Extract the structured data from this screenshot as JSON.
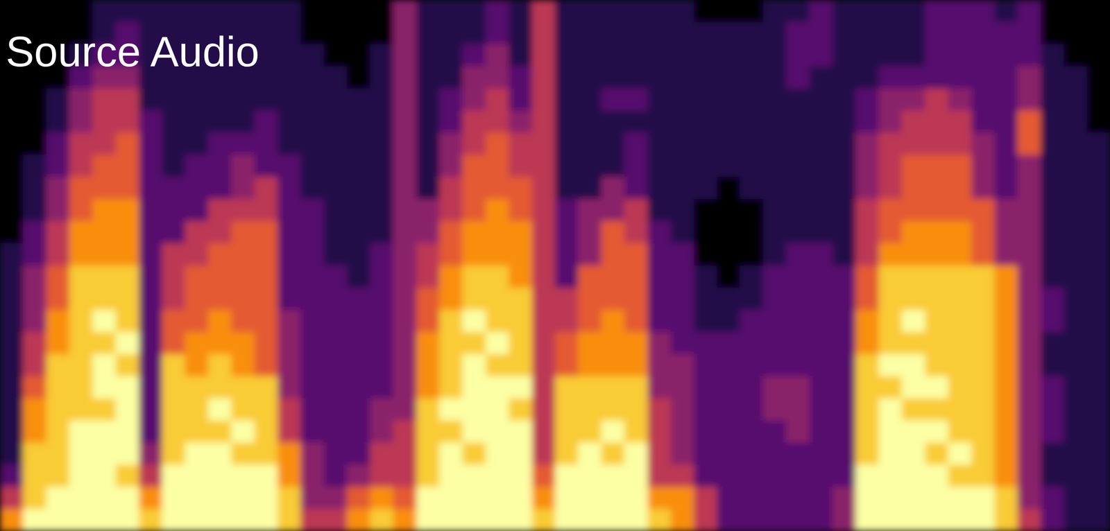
{
  "chart_data": {
    "type": "heatmap",
    "title": "Source Audio",
    "tick_labels": false,
    "cells": [
      [
        1,
        1,
        1,
        1,
        1,
        1,
        1,
        1,
        1,
        1,
        1,
        2,
        2,
        2,
        2,
        2,
        2,
        2,
        2,
        2,
        2,
        3,
        5,
        7
      ],
      [
        1,
        1,
        1,
        1,
        1,
        1,
        1,
        2,
        2,
        2,
        3,
        3,
        4,
        4,
        4,
        5,
        5,
        6,
        7,
        7,
        8,
        8,
        8,
        9
      ],
      [
        1,
        1,
        1,
        1,
        2,
        2,
        3,
        3,
        4,
        4,
        5,
        5,
        6,
        6,
        7,
        7,
        8,
        8,
        8,
        8,
        8,
        8,
        9,
        9
      ],
      [
        1,
        1,
        2,
        3,
        4,
        4,
        5,
        5,
        6,
        6,
        7,
        7,
        8,
        8,
        8,
        8,
        8,
        8,
        8,
        9,
        9,
        9,
        9,
        9
      ],
      [
        2,
        2,
        3,
        4,
        5,
        5,
        5,
        6,
        6,
        7,
        7,
        7,
        8,
        8,
        9,
        8,
        9,
        9,
        8,
        9,
        9,
        9,
        9,
        9
      ],
      [
        2,
        3,
        3,
        4,
        5,
        5,
        6,
        6,
        6,
        7,
        7,
        7,
        8,
        8,
        8,
        9,
        8,
        9,
        9,
        9,
        9,
        8,
        9,
        9
      ],
      [
        2,
        2,
        2,
        2,
        2,
        3,
        3,
        3,
        3,
        3,
        3,
        3,
        3,
        3,
        3,
        3,
        3,
        3,
        3,
        3,
        4,
        5,
        7,
        8
      ],
      [
        2,
        2,
        2,
        2,
        2,
        2,
        2,
        2,
        3,
        3,
        3,
        5,
        5,
        5,
        6,
        6,
        8,
        8,
        8,
        8,
        8,
        9,
        9,
        9
      ],
      [
        2,
        2,
        2,
        2,
        2,
        2,
        2,
        3,
        3,
        3,
        5,
        5,
        6,
        6,
        6,
        7,
        7,
        8,
        8,
        8,
        9,
        9,
        9,
        9
      ],
      [
        2,
        2,
        2,
        2,
        2,
        2,
        3,
        3,
        3,
        5,
        5,
        6,
        6,
        6,
        7,
        7,
        8,
        8,
        9,
        8,
        9,
        9,
        9,
        9
      ],
      [
        2,
        2,
        2,
        2,
        2,
        2,
        3,
        4,
        4,
        5,
        6,
        6,
        6,
        6,
        6,
        7,
        7,
        8,
        8,
        9,
        8,
        9,
        9,
        9
      ],
      [
        2,
        2,
        2,
        2,
        2,
        3,
        3,
        3,
        5,
        5,
        6,
        6,
        6,
        6,
        6,
        6,
        6,
        8,
        8,
        8,
        8,
        9,
        9,
        9
      ],
      [
        2,
        2,
        2,
        2,
        2,
        2,
        2,
        3,
        3,
        3,
        3,
        3,
        3,
        3,
        4,
        4,
        4,
        4,
        5,
        5,
        7,
        7,
        8,
        8
      ],
      [
        1,
        1,
        2,
        2,
        2,
        2,
        2,
        2,
        2,
        3,
        3,
        3,
        3,
        3,
        3,
        3,
        3,
        3,
        3,
        3,
        4,
        4,
        4,
        5
      ],
      [
        1,
        1,
        1,
        2,
        2,
        2,
        2,
        2,
        2,
        2,
        2,
        2,
        3,
        3,
        3,
        3,
        3,
        3,
        3,
        3,
        3,
        3,
        4,
        5
      ],
      [
        1,
        1,
        1,
        1,
        2,
        2,
        2,
        2,
        2,
        2,
        2,
        2,
        2,
        3,
        3,
        3,
        3,
        3,
        3,
        3,
        3,
        4,
        6,
        7
      ],
      [
        1,
        1,
        2,
        2,
        2,
        2,
        2,
        2,
        2,
        2,
        2,
        3,
        3,
        3,
        3,
        3,
        3,
        3,
        4,
        4,
        5,
        5,
        7,
        8
      ],
      [
        4,
        4,
        4,
        4,
        4,
        4,
        4,
        4,
        4,
        4,
        4,
        4,
        4,
        4,
        4,
        4,
        4,
        4,
        4,
        5,
        5,
        5,
        6,
        7
      ],
      [
        2,
        2,
        2,
        2,
        2,
        2,
        2,
        2,
        2,
        4,
        4,
        5,
        5,
        6,
        6,
        7,
        7,
        7,
        8,
        8,
        8,
        8,
        9,
        9
      ],
      [
        2,
        2,
        2,
        2,
        3,
        3,
        4,
        4,
        5,
        5,
        6,
        6,
        7,
        7,
        8,
        8,
        8,
        8,
        9,
        8,
        9,
        9,
        9,
        9
      ],
      [
        2,
        2,
        3,
        4,
        4,
        5,
        5,
        6,
        6,
        6,
        7,
        7,
        8,
        8,
        9,
        8,
        9,
        9,
        9,
        9,
        8,
        9,
        9,
        9
      ],
      [
        3,
        3,
        4,
        4,
        5,
        5,
        6,
        6,
        6,
        7,
        7,
        7,
        8,
        8,
        8,
        9,
        8,
        9,
        9,
        9,
        9,
        9,
        9,
        9
      ],
      [
        2,
        2,
        2,
        3,
        3,
        4,
        5,
        5,
        6,
        6,
        7,
        7,
        7,
        8,
        8,
        8,
        8,
        9,
        8,
        9,
        9,
        9,
        9,
        9
      ],
      [
        5,
        5,
        5,
        5,
        5,
        5,
        5,
        5,
        5,
        5,
        5,
        5,
        5,
        5,
        5,
        5,
        5,
        5,
        5,
        5,
        5,
        6,
        7,
        8
      ],
      [
        2,
        2,
        2,
        2,
        2,
        2,
        2,
        2,
        2,
        3,
        3,
        3,
        3,
        5,
        5,
        6,
        6,
        8,
        8,
        8,
        8,
        9,
        9,
        9
      ],
      [
        2,
        2,
        2,
        2,
        2,
        2,
        2,
        2,
        2,
        4,
        4,
        4,
        6,
        6,
        6,
        7,
        7,
        8,
        8,
        8,
        9,
        9,
        9,
        9
      ],
      [
        2,
        2,
        2,
        2,
        3,
        2,
        2,
        2,
        4,
        4,
        6,
        6,
        6,
        6,
        7,
        7,
        7,
        8,
        8,
        9,
        8,
        9,
        9,
        9
      ],
      [
        2,
        2,
        2,
        2,
        3,
        2,
        3,
        3,
        3,
        5,
        5,
        6,
        6,
        6,
        6,
        7,
        7,
        8,
        8,
        8,
        9,
        9,
        9,
        9
      ],
      [
        2,
        2,
        2,
        2,
        2,
        2,
        2,
        2,
        2,
        2,
        3,
        3,
        3,
        3,
        3,
        4,
        4,
        4,
        5,
        5,
        5,
        5,
        7,
        8
      ],
      [
        2,
        2,
        2,
        2,
        2,
        2,
        2,
        2,
        2,
        2,
        2,
        3,
        3,
        3,
        3,
        3,
        4,
        4,
        4,
        4,
        4,
        5,
        7,
        7
      ],
      [
        1,
        2,
        2,
        2,
        2,
        2,
        2,
        2,
        2,
        1,
        1,
        1,
        2,
        2,
        2,
        3,
        3,
        3,
        3,
        3,
        3,
        3,
        5,
        5
      ],
      [
        1,
        2,
        2,
        2,
        2,
        2,
        2,
        2,
        1,
        1,
        1,
        1,
        1,
        2,
        2,
        3,
        3,
        3,
        3,
        3,
        3,
        3,
        3,
        3
      ],
      [
        1,
        2,
        2,
        2,
        2,
        2,
        2,
        2,
        2,
        1,
        1,
        1,
        2,
        2,
        3,
        3,
        3,
        3,
        3,
        3,
        3,
        3,
        3,
        3
      ],
      [
        2,
        2,
        2,
        2,
        2,
        2,
        2,
        2,
        2,
        2,
        2,
        2,
        3,
        3,
        3,
        3,
        3,
        4,
        4,
        3,
        3,
        3,
        3,
        3
      ],
      [
        2,
        3,
        3,
        3,
        2,
        2,
        2,
        2,
        2,
        2,
        2,
        3,
        3,
        3,
        3,
        3,
        3,
        4,
        4,
        4,
        3,
        3,
        3,
        3
      ],
      [
        3,
        3,
        3,
        2,
        2,
        2,
        2,
        2,
        2,
        2,
        2,
        3,
        3,
        3,
        3,
        3,
        3,
        3,
        3,
        3,
        3,
        3,
        3,
        3
      ],
      [
        2,
        2,
        2,
        2,
        2,
        2,
        2,
        2,
        2,
        2,
        2,
        2,
        3,
        3,
        3,
        3,
        3,
        3,
        3,
        3,
        3,
        3,
        4,
        4
      ],
      [
        2,
        2,
        2,
        2,
        3,
        3,
        4,
        4,
        4,
        5,
        5,
        5,
        6,
        6,
        7,
        7,
        8,
        8,
        8,
        8,
        8,
        9,
        9,
        9
      ],
      [
        2,
        2,
        2,
        3,
        4,
        4,
        5,
        5,
        5,
        6,
        6,
        7,
        8,
        8,
        8,
        8,
        9,
        8,
        9,
        9,
        9,
        9,
        9,
        9
      ],
      [
        2,
        2,
        2,
        3,
        4,
        5,
        5,
        6,
        6,
        6,
        7,
        7,
        8,
        8,
        9,
        8,
        9,
        9,
        8,
        9,
        9,
        9,
        9,
        9
      ],
      [
        3,
        3,
        3,
        3,
        5,
        5,
        5,
        6,
        6,
        6,
        7,
        7,
        8,
        8,
        8,
        8,
        8,
        9,
        8,
        9,
        8,
        9,
        9,
        9
      ],
      [
        3,
        3,
        3,
        3,
        4,
        5,
        5,
        6,
        6,
        6,
        7,
        7,
        8,
        8,
        8,
        8,
        8,
        8,
        8,
        8,
        9,
        8,
        9,
        9
      ],
      [
        3,
        3,
        3,
        3,
        3,
        3,
        4,
        4,
        4,
        6,
        6,
        6,
        8,
        8,
        8,
        8,
        8,
        8,
        8,
        8,
        8,
        8,
        9,
        9
      ],
      [
        2,
        3,
        3,
        3,
        3,
        3,
        3,
        3,
        3,
        4,
        4,
        4,
        7,
        7,
        7,
        7,
        7,
        7,
        7,
        7,
        7,
        7,
        8,
        8
      ],
      [
        3,
        3,
        3,
        4,
        4,
        6,
        6,
        4,
        4,
        4,
        4,
        4,
        4,
        4,
        4,
        4,
        4,
        4,
        4,
        4,
        4,
        4,
        4,
        5
      ],
      [
        1,
        1,
        2,
        2,
        2,
        2,
        2,
        2,
        2,
        2,
        2,
        2,
        2,
        3,
        3,
        2,
        2,
        3,
        3,
        3,
        2,
        2,
        3,
        3
      ],
      [
        1,
        1,
        1,
        2,
        2,
        2,
        2,
        2,
        2,
        2,
        2,
        2,
        2,
        2,
        2,
        2,
        2,
        2,
        2,
        2,
        2,
        2,
        2,
        2
      ],
      [
        1,
        1,
        1,
        1,
        1,
        1,
        2,
        2,
        2,
        2,
        2,
        2,
        2,
        2,
        2,
        2,
        2,
        2,
        2,
        2,
        2,
        2,
        2,
        2
      ]
    ]
  }
}
